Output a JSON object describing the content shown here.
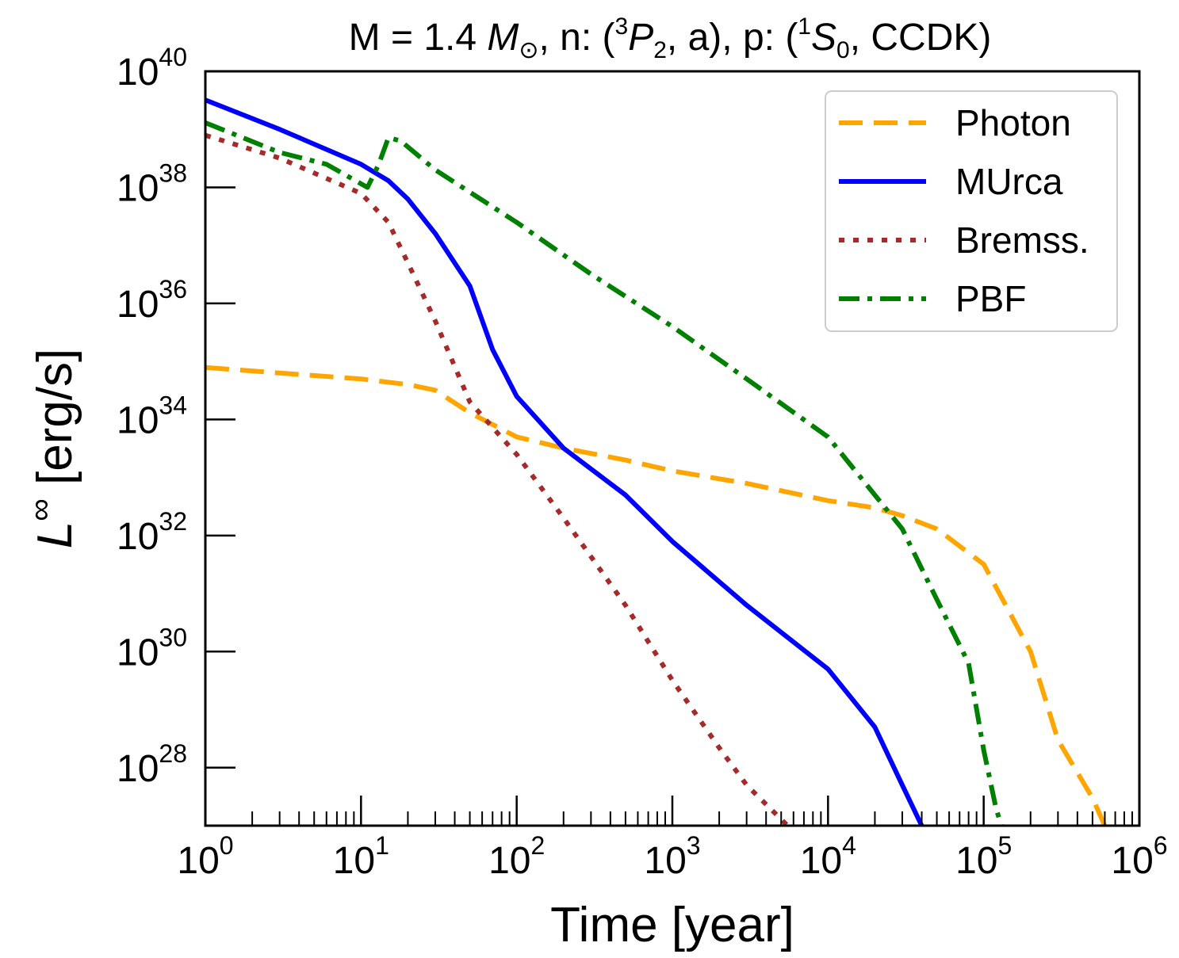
{
  "chart_data": {
    "type": "line",
    "title": {
      "prefix": "M = 1.4 ",
      "mass_symbol": "M",
      "mass_subscript": "⊙",
      "n_part": ", n: (",
      "n_sup": "3",
      "n_state": "P",
      "n_sub": "2",
      "n_suffix": ", a), p: (",
      "p_sup": "1",
      "p_state": "S",
      "p_sub": "0",
      "p_suffix": ", CCDK)"
    },
    "xlabel": "Time [year]",
    "ylabel": {
      "symbol": "L",
      "superscript": "∞",
      "unit": " [erg/s]"
    },
    "x_scale": "log",
    "y_scale": "log",
    "xlim": [
      1,
      1000000
    ],
    "ylim": [
      1e+27,
      1e+40
    ],
    "x_ticks": [
      {
        "value": 1,
        "base": "10",
        "exp": "0"
      },
      {
        "value": 10,
        "base": "10",
        "exp": "1"
      },
      {
        "value": 100,
        "base": "10",
        "exp": "2"
      },
      {
        "value": 1000,
        "base": "10",
        "exp": "3"
      },
      {
        "value": 10000,
        "base": "10",
        "exp": "4"
      },
      {
        "value": 100000,
        "base": "10",
        "exp": "5"
      },
      {
        "value": 1000000,
        "base": "10",
        "exp": "6"
      }
    ],
    "y_ticks": [
      {
        "value": 1e+28,
        "base": "10",
        "exp": "28"
      },
      {
        "value": 1e+30,
        "base": "10",
        "exp": "30"
      },
      {
        "value": 1e+32,
        "base": "10",
        "exp": "32"
      },
      {
        "value": 1e+34,
        "base": "10",
        "exp": "34"
      },
      {
        "value": 1e+36,
        "base": "10",
        "exp": "36"
      },
      {
        "value": 1e+38,
        "base": "10",
        "exp": "38"
      },
      {
        "value": 1e+40,
        "base": "10",
        "exp": "40"
      }
    ],
    "grid": false,
    "legend_position": "top-right",
    "series": [
      {
        "name": "Photon",
        "color": "#FFA500",
        "dash": "dashed",
        "points": [
          [
            1,
            7.9e+34
          ],
          [
            3,
            6.3e+34
          ],
          [
            10,
            5e+34
          ],
          [
            20,
            4e+34
          ],
          [
            30,
            3.2e+34
          ],
          [
            50,
            1.3e+34
          ],
          [
            100,
            5e+33
          ],
          [
            200,
            3.2e+33
          ],
          [
            500,
            2e+33
          ],
          [
            1000,
            1.3e+33
          ],
          [
            3000,
            7.9e+32
          ],
          [
            10000,
            4e+32
          ],
          [
            20000,
            3e+32
          ],
          [
            30000,
            2.2e+32
          ],
          [
            50000,
            1.3e+32
          ],
          [
            100000,
            3.2e+31
          ],
          [
            200000,
            1e+30
          ],
          [
            300000,
            3e+28
          ],
          [
            500000,
            3e+27
          ],
          [
            600000,
            1e+27
          ]
        ]
      },
      {
        "name": "MUrca",
        "color": "#0000FF",
        "dash": "solid",
        "points": [
          [
            1,
            3.2e+39
          ],
          [
            3,
            1e+39
          ],
          [
            10,
            2.5e+38
          ],
          [
            15,
            1.3e+38
          ],
          [
            20,
            6.3e+37
          ],
          [
            30,
            1.6e+37
          ],
          [
            50,
            2e+36
          ],
          [
            70,
            1.6e+35
          ],
          [
            100,
            2.5e+34
          ],
          [
            200,
            3.2e+33
          ],
          [
            500,
            5e+32
          ],
          [
            1000,
            7.9e+31
          ],
          [
            3000,
            6.3e+30
          ],
          [
            10000,
            5e+29
          ],
          [
            20000,
            5e+28
          ],
          [
            30000,
            5e+27
          ],
          [
            40000,
            1e+27
          ]
        ]
      },
      {
        "name": "Bremss.",
        "color": "#A52A2A",
        "dash": "dotted",
        "points": [
          [
            1,
            7.9e+38
          ],
          [
            3,
            3.2e+38
          ],
          [
            10,
            7.9e+37
          ],
          [
            15,
            2.5e+37
          ],
          [
            20,
            5e+36
          ],
          [
            30,
            5e+35
          ],
          [
            50,
            2e+34
          ],
          [
            100,
            2.5e+33
          ],
          [
            200,
            2e+32
          ],
          [
            500,
            6.3e+30
          ],
          [
            1000,
            3.2e+29
          ],
          [
            2000,
            2.2e+28
          ],
          [
            3000,
            5e+27
          ],
          [
            5500,
            1e+27
          ]
        ]
      },
      {
        "name": "PBF",
        "color": "#008000",
        "dash": "dashdot",
        "points": [
          [
            1,
            1.3e+39
          ],
          [
            3,
            4e+38
          ],
          [
            6,
            2.5e+38
          ],
          [
            11,
            1e+38
          ],
          [
            13,
            2.5e+38
          ],
          [
            15,
            7.2e+38
          ],
          [
            18,
            6.3e+38
          ],
          [
            30,
            2e+38
          ],
          [
            100,
            2.5e+37
          ],
          [
            300,
            3.2e+36
          ],
          [
            1000,
            4e+35
          ],
          [
            3000,
            5e+34
          ],
          [
            10000,
            5e+33
          ],
          [
            20000,
            5e+32
          ],
          [
            30000,
            1.3e+32
          ],
          [
            50000,
            7.9e+30
          ],
          [
            80000,
            6.3e+29
          ],
          [
            100000,
            2e+28
          ],
          [
            120000,
            2e+27
          ],
          [
            130000,
            1e+27
          ]
        ]
      }
    ]
  }
}
